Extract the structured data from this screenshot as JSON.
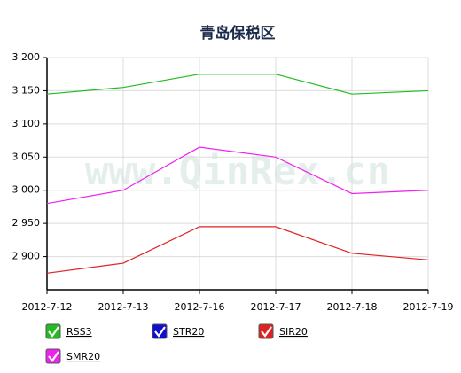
{
  "chart_data": {
    "type": "line",
    "title": "青岛保税区",
    "watermark": "www.QinRex.cn",
    "categories": [
      "2012-7-12",
      "2012-7-13",
      "2012-7-16",
      "2012-7-17",
      "2012-7-18",
      "2012-7-19"
    ],
    "series": [
      {
        "name": "RSS3",
        "color": "#22bb22",
        "values": [
          3145,
          3155,
          3175,
          3175,
          3145,
          3150
        ]
      },
      {
        "name": "STR20",
        "color": "#1010cc",
        "values": [
          null,
          null,
          null,
          null,
          null,
          null
        ]
      },
      {
        "name": "SIR20",
        "color": "#dd2222",
        "values": [
          2875,
          2890,
          2945,
          2945,
          2905,
          2895
        ]
      },
      {
        "name": "SMR20",
        "color": "#ee22ee",
        "values": [
          2980,
          3000,
          3065,
          3050,
          2995,
          3000
        ]
      }
    ],
    "ylim": [
      2850,
      3200
    ],
    "yticks": [
      {
        "value": 2900,
        "label": "2 900"
      },
      {
        "value": 2950,
        "label": "2 950"
      },
      {
        "value": 3000,
        "label": "3 000"
      },
      {
        "value": 3050,
        "label": "3 050"
      },
      {
        "value": 3100,
        "label": "3 100"
      },
      {
        "value": 3150,
        "label": "3 150"
      },
      {
        "value": 3200,
        "label": "3 200"
      }
    ],
    "grid": true
  }
}
